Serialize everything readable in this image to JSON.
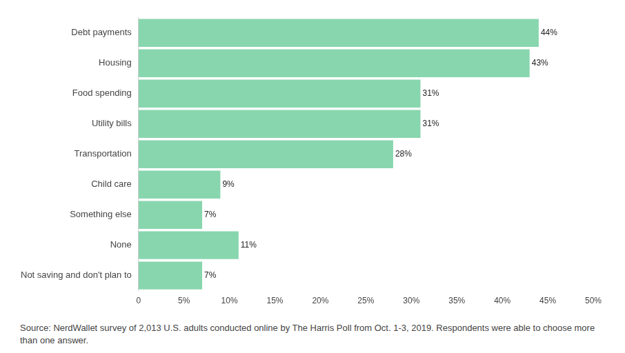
{
  "chart_data": {
    "type": "bar",
    "orientation": "horizontal",
    "categories": [
      "Debt payments",
      "Housing",
      "Food spending",
      "Utility bills",
      "Transportation",
      "Child care",
      "Something else",
      "None",
      "Not saving and don't plan to"
    ],
    "values": [
      44,
      43,
      31,
      31,
      28,
      9,
      7,
      11,
      7
    ],
    "value_labels": [
      "44%",
      "43%",
      "31%",
      "31%",
      "28%",
      "9%",
      "7%",
      "11%",
      "7%"
    ],
    "data_labels": true,
    "color": "#88d6ae",
    "xlim": [
      0,
      50
    ],
    "xticks": [
      0,
      {
        "value": 5,
        "label": "5%"
      },
      {
        "value": 10,
        "label": "10%"
      },
      {
        "value": 15,
        "label": "15%"
      },
      {
        "value": 20,
        "label": "20%"
      },
      {
        "value": 25,
        "label": "25%"
      },
      {
        "value": 30,
        "label": "30%"
      },
      {
        "value": 35,
        "label": "35%"
      },
      {
        "value": 40,
        "label": "40%"
      },
      {
        "value": 45,
        "label": "45%"
      },
      {
        "value": 50,
        "label": "50%"
      }
    ],
    "grid": false,
    "caption": "Source: NerdWallet survey of 2,013 U.S. adults conducted online by The Harris Poll from Oct. 1-3, 2019. Respondents were able to choose more than one answer."
  }
}
